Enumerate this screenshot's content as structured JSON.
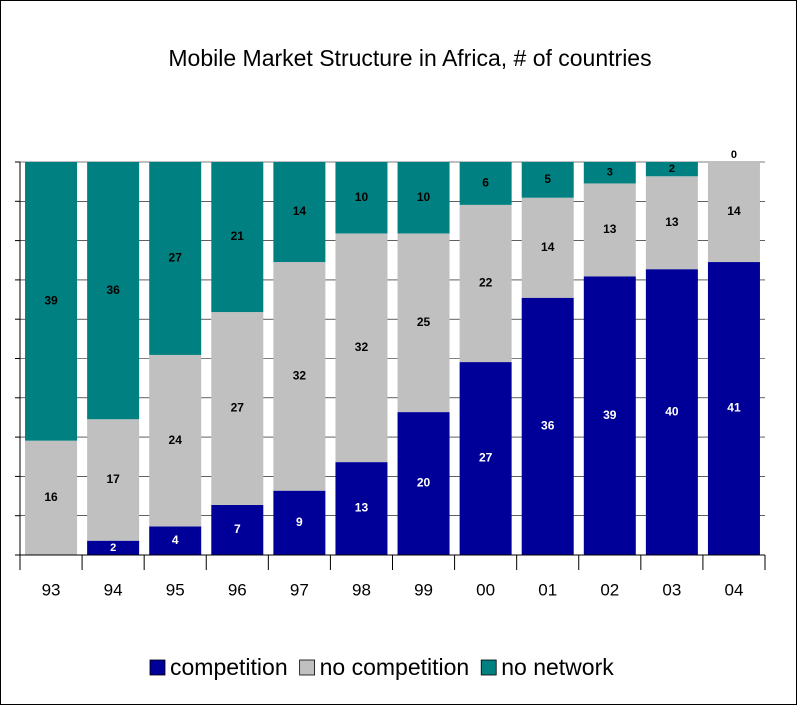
{
  "chart_data": {
    "type": "stacked_bar",
    "title": "Mobile Market Structure in Africa, # of countries",
    "categories": [
      "93",
      "94",
      "95",
      "96",
      "97",
      "98",
      "99",
      "00",
      "01",
      "02",
      "03",
      "04"
    ],
    "series": [
      {
        "name": "competition",
        "color": "#000099",
        "label_color": "#ffffff",
        "values": [
          0,
          2,
          4,
          7,
          9,
          13,
          20,
          27,
          36,
          39,
          40,
          41
        ]
      },
      {
        "name": "no competition",
        "color": "#c0c0c0",
        "label_color": "#000000",
        "values": [
          16,
          17,
          24,
          27,
          32,
          32,
          25,
          22,
          14,
          13,
          13,
          14
        ]
      },
      {
        "name": "no network",
        "color": "#008080",
        "label_color": "#000000",
        "values": [
          39,
          36,
          27,
          21,
          14,
          10,
          10,
          6,
          5,
          3,
          2,
          0
        ]
      }
    ],
    "ylim": [
      0,
      55
    ],
    "yticks": [
      0,
      5.5,
      11,
      16.5,
      22,
      27.5,
      33,
      38.5,
      44,
      49.5,
      55
    ],
    "grid": true,
    "legend": "bottom"
  }
}
